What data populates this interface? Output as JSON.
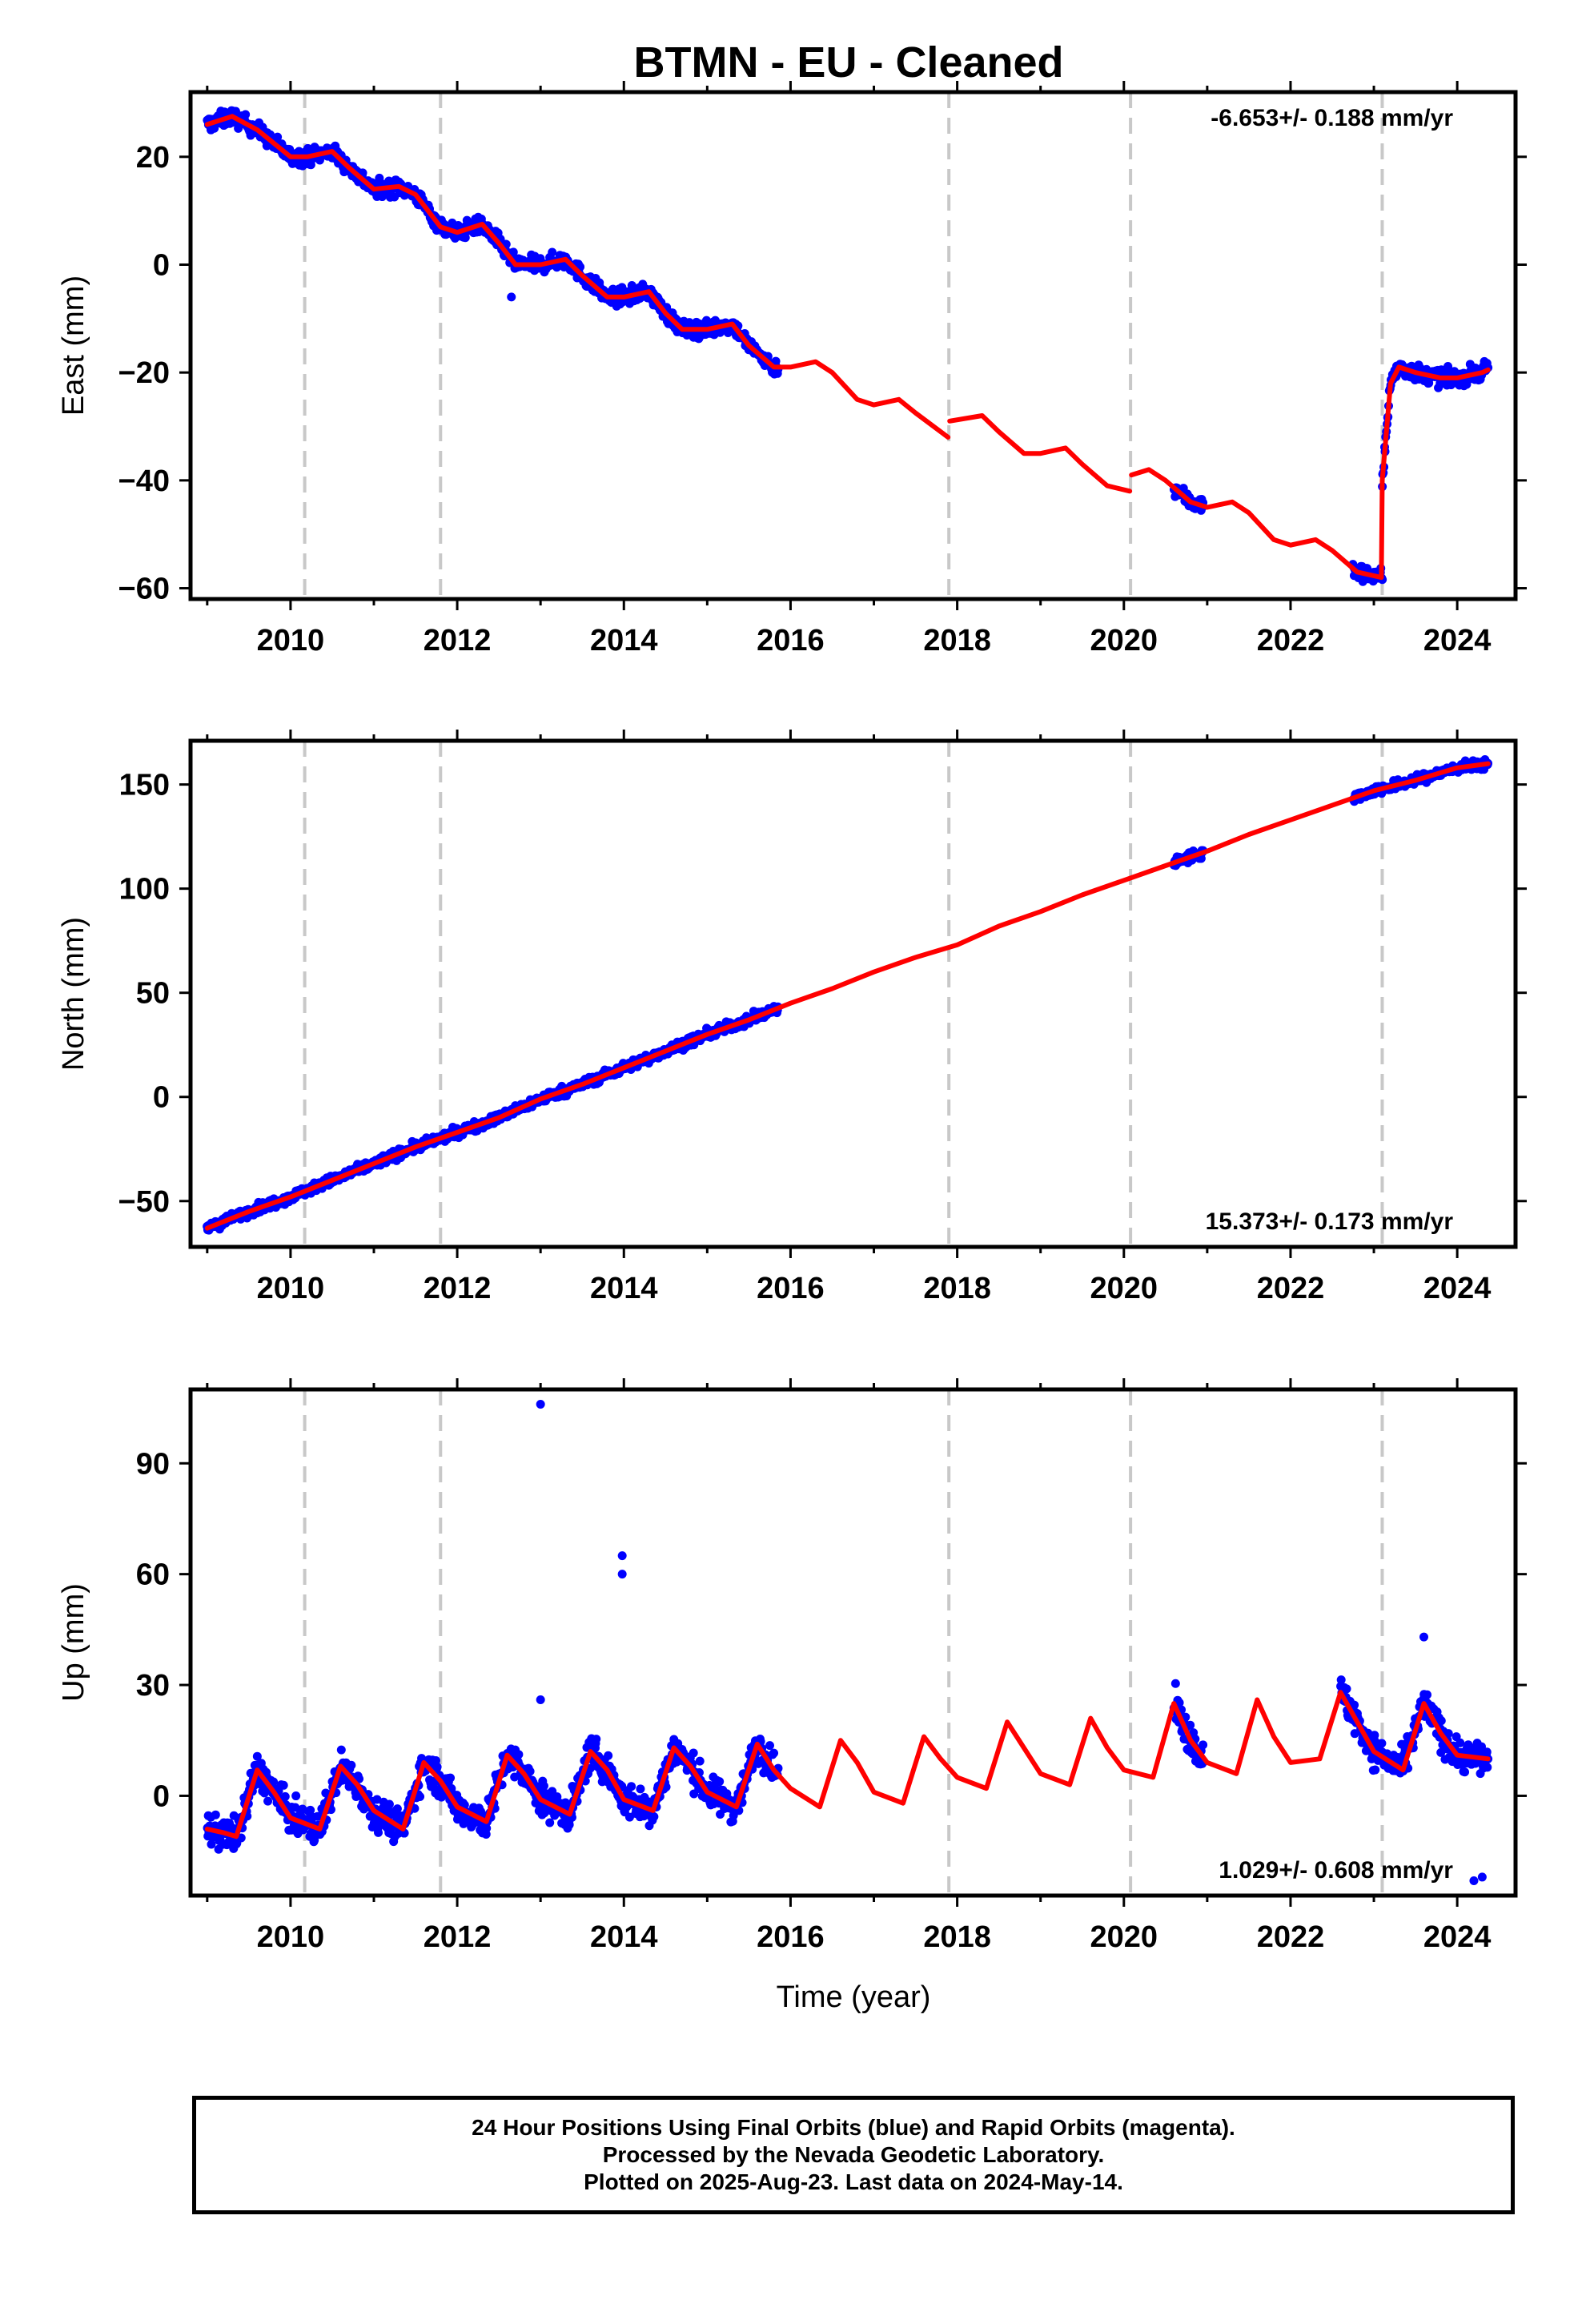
{
  "title": "BTMN  - EU - Cleaned",
  "x_axis_label": "Time (year)",
  "caption": [
    "24 Hour Positions Using Final Orbits (blue) and Rapid Orbits (magenta).",
    "Processed by the Nevada Geodetic Laboratory.",
    "Plotted on 2025-Aug-23. Last data on 2024-May-14."
  ],
  "colors": {
    "observations": "#0000ff",
    "model": "#ff0000",
    "event_lines": "#c8c8c8",
    "frame": "#000000"
  },
  "chart_data": [
    {
      "type": "scatter",
      "name": "east",
      "ylabel": "East (mm)",
      "xlim": [
        2008.8,
        2024.7
      ],
      "ylim": [
        -62,
        32
      ],
      "yticks": [
        -60,
        -40,
        -20,
        0,
        20
      ],
      "xticks": [
        2010,
        2012,
        2014,
        2016,
        2018,
        2020,
        2022,
        2024
      ],
      "grid": false,
      "rate_label": "-6.653+/- 0.188 mm/yr",
      "rate_position": "top-right",
      "event_lines": [
        2010.17,
        2011.8,
        2017.9,
        2020.08,
        2023.1
      ],
      "data_segments": [
        [
          2009.0,
          2015.85
        ],
        [
          2020.6,
          2020.95
        ],
        [
          2022.75,
          2023.1
        ],
        [
          2023.1,
          2024.37
        ]
      ],
      "observation_summary": {
        "start": 2009.0,
        "end": 2024.37,
        "outliers": [
          [
            2012.65,
            -6
          ]
        ]
      },
      "model": {
        "x": [
          2009.0,
          2009.3,
          2009.6,
          2010.0,
          2010.2,
          2010.5,
          2010.7,
          2011.0,
          2011.3,
          2011.5,
          2011.8,
          2012.0,
          2012.3,
          2012.5,
          2012.7,
          2013.0,
          2013.3,
          2013.5,
          2013.8,
          2014.0,
          2014.3,
          2014.5,
          2014.7,
          2015.0,
          2015.3,
          2015.5,
          2015.8,
          2016.0,
          2016.3,
          2016.5,
          2016.8,
          2017.0,
          2017.3,
          2017.5,
          2017.89,
          2017.91,
          2018.3,
          2018.5,
          2018.8,
          2019.0,
          2019.3,
          2019.5,
          2019.8,
          2020.07,
          2020.09,
          2020.3,
          2020.5,
          2020.8,
          2021.0,
          2021.3,
          2021.5,
          2021.8,
          2022.0,
          2022.3,
          2022.5,
          2022.8,
          2023.09,
          2023.1,
          2023.2,
          2023.3,
          2023.5,
          2023.8,
          2024.0,
          2024.3,
          2024.37
        ],
        "y": [
          26,
          27.5,
          25,
          20,
          20,
          21,
          18,
          14,
          14.5,
          13,
          7,
          6,
          7.5,
          4,
          0,
          0,
          1,
          -2,
          -6,
          -6,
          -5,
          -9,
          -12,
          -12,
          -11,
          -15,
          -19,
          -19,
          -18,
          -20,
          -25,
          -26,
          -25,
          -27.5,
          -32,
          -29,
          -28,
          -31,
          -35,
          -35,
          -34,
          -37,
          -41,
          -42,
          -39,
          -38,
          -40,
          -44,
          -45,
          -44,
          -46,
          -51,
          -52,
          -51,
          -53,
          -57,
          -58,
          -40,
          -22,
          -19,
          -20,
          -21,
          -21,
          -20,
          -19.5
        ]
      }
    },
    {
      "type": "scatter",
      "name": "north",
      "ylabel": "North (mm)",
      "xlim": [
        2008.8,
        2024.7
      ],
      "ylim": [
        -72,
        171
      ],
      "yticks": [
        -50,
        0,
        50,
        100,
        150
      ],
      "xticks": [
        2010,
        2012,
        2014,
        2016,
        2018,
        2020,
        2022,
        2024
      ],
      "grid": false,
      "rate_label": "15.373+/- 0.173 mm/yr",
      "rate_position": "bottom-right",
      "event_lines": [
        2010.17,
        2011.8,
        2017.9,
        2020.08,
        2023.1
      ],
      "data_segments": [
        [
          2009.0,
          2015.85
        ],
        [
          2020.6,
          2020.95
        ],
        [
          2022.75,
          2024.37
        ]
      ],
      "observation_summary": {
        "start": 2009.0,
        "end": 2024.37
      },
      "model": {
        "x": [
          2009.0,
          2009.5,
          2010.0,
          2010.5,
          2011.0,
          2011.5,
          2012.0,
          2012.5,
          2013.0,
          2013.5,
          2014.0,
          2014.5,
          2015.0,
          2015.5,
          2016.0,
          2016.5,
          2017.0,
          2017.5,
          2018.0,
          2018.5,
          2019.0,
          2019.5,
          2020.0,
          2020.5,
          2021.0,
          2021.5,
          2022.0,
          2022.5,
          2023.0,
          2023.5,
          2024.0,
          2024.37
        ],
        "y": [
          -63,
          -55,
          -48,
          -40,
          -32,
          -24,
          -17,
          -10,
          -1,
          6,
          14,
          22,
          30,
          37,
          45,
          52,
          60,
          67,
          73,
          82,
          89,
          97,
          104,
          111,
          118,
          126,
          133,
          140,
          147,
          152,
          158,
          160
        ]
      }
    },
    {
      "type": "scatter",
      "name": "up",
      "ylabel": "Up (mm)",
      "xlim": [
        2008.8,
        2024.7
      ],
      "ylim": [
        -27,
        110
      ],
      "yticks": [
        0,
        30,
        60,
        90
      ],
      "xticks": [
        2010,
        2012,
        2014,
        2016,
        2018,
        2020,
        2022,
        2024
      ],
      "grid": false,
      "rate_label": "1.029+/- 0.608 mm/yr",
      "rate_position": "bottom-right",
      "event_lines": [
        2010.17,
        2011.8,
        2017.9,
        2020.08,
        2023.1
      ],
      "data_segments": [
        [
          2009.0,
          2015.85
        ],
        [
          2020.6,
          2020.95
        ],
        [
          2022.6,
          2024.37
        ]
      ],
      "observation_summary": {
        "start": 2009.0,
        "end": 2024.37,
        "outliers": [
          [
            2013.0,
            106
          ],
          [
            2013.98,
            65
          ],
          [
            2013.98,
            60
          ],
          [
            2013.0,
            26
          ],
          [
            2023.6,
            43
          ],
          [
            2024.2,
            -23
          ],
          [
            2024.3,
            -22
          ]
        ]
      },
      "model": {
        "x": [
          2009.0,
          2009.2,
          2009.35,
          2009.6,
          2009.8,
          2010.0,
          2010.35,
          2010.6,
          2010.8,
          2011.0,
          2011.35,
          2011.6,
          2011.8,
          2012.0,
          2012.35,
          2012.6,
          2012.8,
          2013.0,
          2013.35,
          2013.6,
          2013.8,
          2014.0,
          2014.35,
          2014.6,
          2014.8,
          2015.0,
          2015.35,
          2015.6,
          2015.8,
          2016.0,
          2016.35,
          2016.6,
          2016.8,
          2017.0,
          2017.35,
          2017.6,
          2017.8,
          2018.0,
          2018.35,
          2018.6,
          2018.8,
          2019.0,
          2019.35,
          2019.6,
          2019.8,
          2020.0,
          2020.35,
          2020.6,
          2020.8,
          2021.0,
          2021.35,
          2021.6,
          2021.8,
          2022.0,
          2022.35,
          2022.6,
          2022.8,
          2023.0,
          2023.35,
          2023.6,
          2023.8,
          2024.0,
          2024.37
        ],
        "y": [
          -9,
          -10,
          -11,
          7,
          1,
          -6,
          -9,
          8,
          3,
          -4,
          -9,
          9,
          4,
          -3,
          -7,
          11,
          6,
          -1,
          -5,
          12,
          7,
          -1,
          -4,
          13,
          8,
          1,
          -3,
          14,
          7,
          2,
          -3,
          15,
          9,
          1,
          -2,
          16,
          10,
          5,
          2,
          20,
          13,
          6,
          3,
          21,
          13,
          7,
          5,
          25,
          15,
          9,
          6,
          26,
          16,
          9,
          10,
          28,
          20,
          12,
          7,
          25,
          17,
          11,
          10
        ]
      }
    }
  ]
}
